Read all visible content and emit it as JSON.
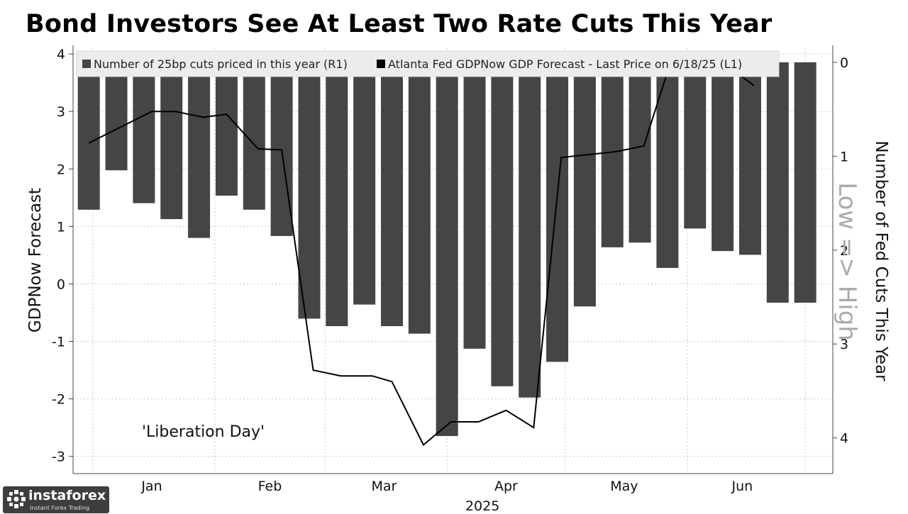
{
  "chart_data": {
    "type": "bar+line",
    "title": "Bond Investors See At Least Two Rate Cuts This Year",
    "x_labels": [
      "Jan",
      "Feb",
      "Mar",
      "Apr",
      "May",
      "Jun"
    ],
    "x_year": "2025",
    "left_axis": {
      "label": "GDPNow Forecast",
      "ylim": [
        -3.3,
        4.1
      ],
      "ticks": [
        "4",
        "3",
        "2",
        "1",
        "0",
        "-1",
        "-2",
        "-3"
      ]
    },
    "right_axis": {
      "label": "Number of Fed Cuts This Year",
      "ylim": [
        -0.15,
        4.38
      ],
      "inverted": true,
      "ticks": [
        "0",
        "1",
        "2",
        "3",
        "4"
      ]
    },
    "bars": {
      "name": "Number of 25bp cuts priced in this year (R1)",
      "color": "#454545",
      "dates": [
        "2024-12-31",
        "2025-01-07",
        "2025-01-14",
        "2025-01-21",
        "2025-01-28",
        "2025-02-04",
        "2025-02-11",
        "2025-02-18",
        "2025-02-25",
        "2025-03-04",
        "2025-03-11",
        "2025-03-18",
        "2025-03-25",
        "2025-04-01",
        "2025-04-08",
        "2025-04-15",
        "2025-04-22",
        "2025-04-29",
        "2025-05-06",
        "2025-05-13",
        "2025-05-20",
        "2025-05-27",
        "2025-06-03",
        "2025-06-10",
        "2025-06-17",
        "2025-06-24",
        "2025-07-01"
      ],
      "values": [
        1.57,
        1.15,
        1.5,
        1.67,
        1.87,
        1.42,
        1.57,
        1.85,
        2.73,
        2.81,
        2.58,
        2.81,
        2.89,
        3.98,
        3.05,
        3.45,
        3.57,
        3.19,
        2.6,
        1.97,
        1.92,
        2.19,
        1.77,
        2.01,
        2.05,
        2.56,
        2.56
      ]
    },
    "line": {
      "name": "Atlanta Fed GDPNow GDP Forecast - Last Price on 6/18/25 (L1)",
      "color": "#000000",
      "points": [
        [
          "2024-12-31",
          2.45
        ],
        [
          "2025-01-16",
          3.0
        ],
        [
          "2025-01-22",
          3.0
        ],
        [
          "2025-01-29",
          2.9
        ],
        [
          "2025-02-04",
          2.95
        ],
        [
          "2025-02-12",
          2.35
        ],
        [
          "2025-02-18",
          2.33
        ],
        [
          "2025-02-26",
          -1.5
        ],
        [
          "2025-03-05",
          -1.6
        ],
        [
          "2025-03-13",
          -1.6
        ],
        [
          "2025-03-18",
          -1.7
        ],
        [
          "2025-03-26",
          -2.8
        ],
        [
          "2025-04-02",
          -2.4
        ],
        [
          "2025-04-09",
          -2.4
        ],
        [
          "2025-04-16",
          -2.2
        ],
        [
          "2025-04-23",
          -2.5
        ],
        [
          "2025-04-30",
          2.2
        ],
        [
          "2025-05-14",
          2.3
        ],
        [
          "2025-05-21",
          2.4
        ],
        [
          "2025-05-28",
          3.9
        ],
        [
          "2025-06-04",
          3.8
        ],
        [
          "2025-06-11",
          3.8
        ],
        [
          "2025-06-18",
          3.45
        ]
      ]
    },
    "annotation": "'Liberation Day'",
    "side_note": "Low => High",
    "grid": "dotted"
  },
  "watermark": {
    "name": "instaforex",
    "tagline": "Instant Forex Trading"
  }
}
